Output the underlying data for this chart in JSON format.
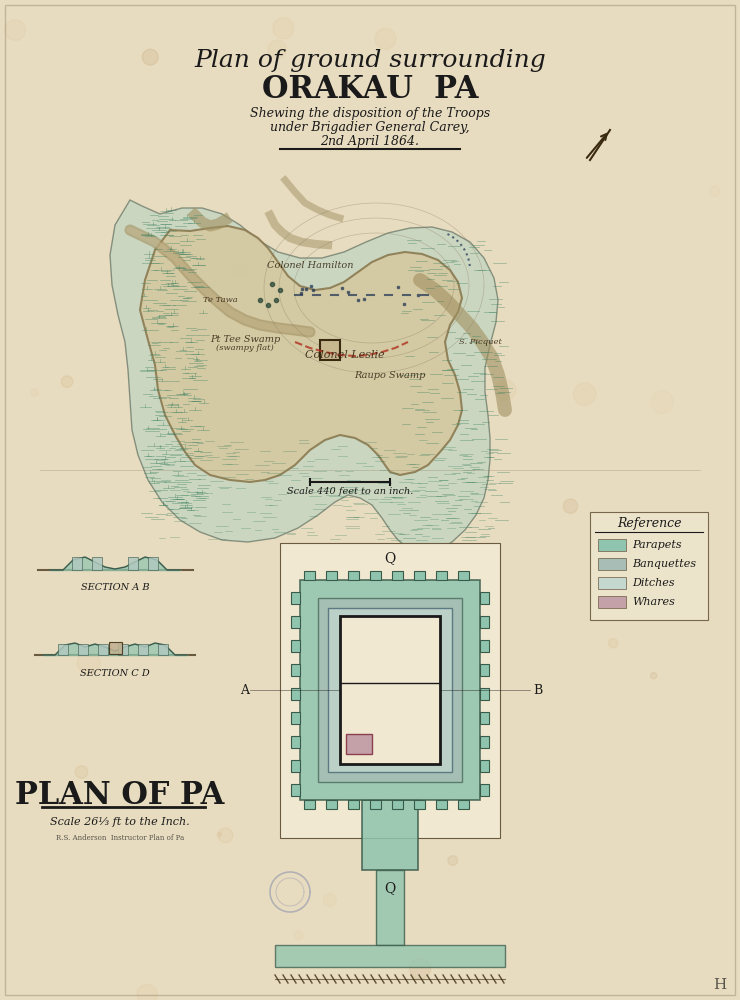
{
  "bg_color": "#e8dcc0",
  "paper_color": "#ddd0a8",
  "title_line1": "Plan of ground surrounding",
  "title_line2": "ORAKAU  PA",
  "title_line3": "Shewing the disposition of the Troops",
  "title_line4": "under Brigadier General Carey,",
  "title_line5": "2nd April 1864.",
  "plan_title": "PLAN OF PA",
  "plan_scale": "Scale 26⅓ ft to the Inch.",
  "section_ab": "SECTION A B",
  "section_cd": "SECTION C D",
  "scale_bar_text": "Scale 440 feet to an inch.",
  "ref_title": "Reference",
  "ref_items": [
    "Parapets",
    "Banquettes",
    "Ditches",
    "Whares"
  ],
  "ref_colors": [
    "#8fc4ae",
    "#a8bdb5",
    "#c5d8d0",
    "#c4a0a8"
  ],
  "parapet_color": "#8fc4ae",
  "banquette_color": "#a8bdb5",
  "ditch_color": "#c5d8d0",
  "whare_color": "#c4a0a8",
  "map_fill": "#c8ddd0",
  "terrain_fill": "#d4c8a0",
  "swamp_color": "#7ab8a8",
  "river_color": "#c8b890"
}
